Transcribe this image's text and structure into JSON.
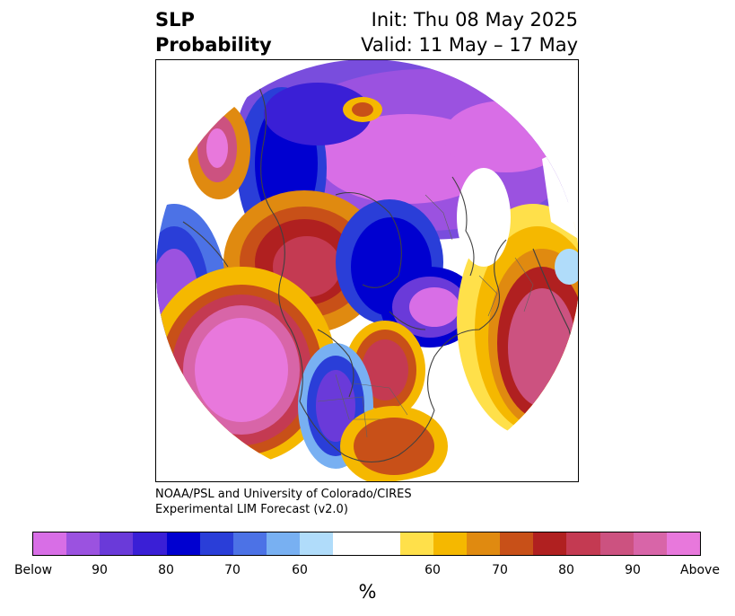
{
  "title": {
    "variable": "SLP",
    "product": "Probability",
    "init": "Init: Thu 08 May 2025",
    "valid": "Valid: 11 May – 17 May"
  },
  "credit": {
    "line1": "NOAA/PSL and University of Colorado/CIRES",
    "line2": "Experimental LIM Forecast (v2.0)"
  },
  "colorbar": {
    "unit": "%",
    "colors": [
      "#d86ee6",
      "#9b52e0",
      "#6a3ad9",
      "#3a1fd6",
      "#0000d0",
      "#2a3ed8",
      "#4c72e6",
      "#78b0f2",
      "#b0dcfa",
      "#ffffff",
      "#ffe04a",
      "#f5b800",
      "#e08a10",
      "#c85018",
      "#b02020",
      "#c43a52",
      "#cc5280",
      "#d865a8",
      "#e878dc"
    ],
    "ticks": [
      "Below",
      "90",
      "80",
      "70",
      "60",
      "60",
      "70",
      "80",
      "90",
      "Above"
    ]
  },
  "map": {
    "projection": "north-polar-stereographic",
    "features": [
      "continents",
      "country-borders",
      "us-state-borders"
    ],
    "color_key": {
      "below_strong": "#d86ee6",
      "below": "#0000d0",
      "neutral": "#ffffff",
      "above": "#f5b800",
      "above_strong": "#e878dc"
    }
  }
}
